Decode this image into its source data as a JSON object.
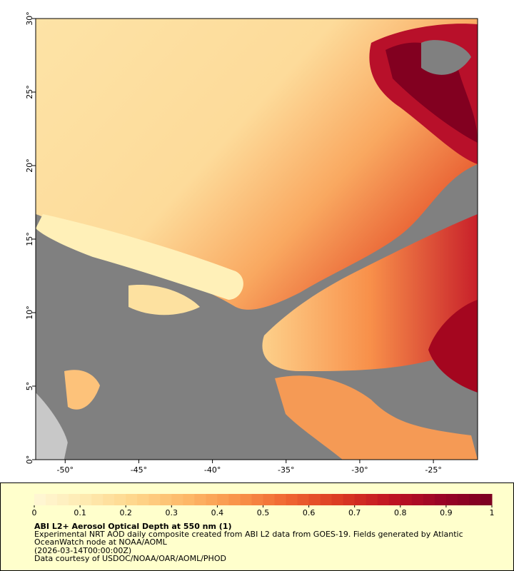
{
  "chart_data": {
    "type": "map",
    "title": "ABI L2+ Aerosol Optical Depth at 550 nm (1)",
    "description": [
      "Experimental NRT AOD daily composite created from ABI L2 data from GOES-19. Fields generated by Atlantic",
      "OceanWatch node at NOAA/AOML"
    ],
    "date": "(2026-03-14T00:00:00Z)",
    "credit": "Data courtesy of USDOC/NOAA/OAR/AOML/PHOD",
    "xlim": [
      -52,
      -22
    ],
    "xticks": [
      {
        "value": -50,
        "label": "-50°"
      },
      {
        "value": -45,
        "label": "-45°"
      },
      {
        "value": -40,
        "label": "-40°"
      },
      {
        "value": -35,
        "label": "-35°"
      },
      {
        "value": -30,
        "label": "-30°"
      },
      {
        "value": -25,
        "label": "-25°"
      }
    ],
    "ylim": [
      0,
      30
    ],
    "yticks": [
      {
        "value": 0,
        "label": "0°"
      },
      {
        "value": 5,
        "label": "5°"
      },
      {
        "value": 10,
        "label": "10°"
      },
      {
        "value": 15,
        "label": "15°"
      },
      {
        "value": 20,
        "label": "20°"
      },
      {
        "value": 25,
        "label": "25°"
      },
      {
        "value": 30,
        "label": "30°"
      }
    ],
    "colorbar": {
      "range": [
        0,
        1
      ],
      "ticks": [
        0,
        0.1,
        0.2,
        0.3,
        0.4,
        0.5,
        0.6,
        0.7,
        0.8,
        0.9,
        1
      ],
      "colors": [
        "#fff8d6",
        "#feeab0",
        "#fed58a",
        "#fdb868",
        "#f99349",
        "#ef6531",
        "#db3a22",
        "#c01423",
        "#9a0426",
        "#7a0020"
      ]
    }
  }
}
